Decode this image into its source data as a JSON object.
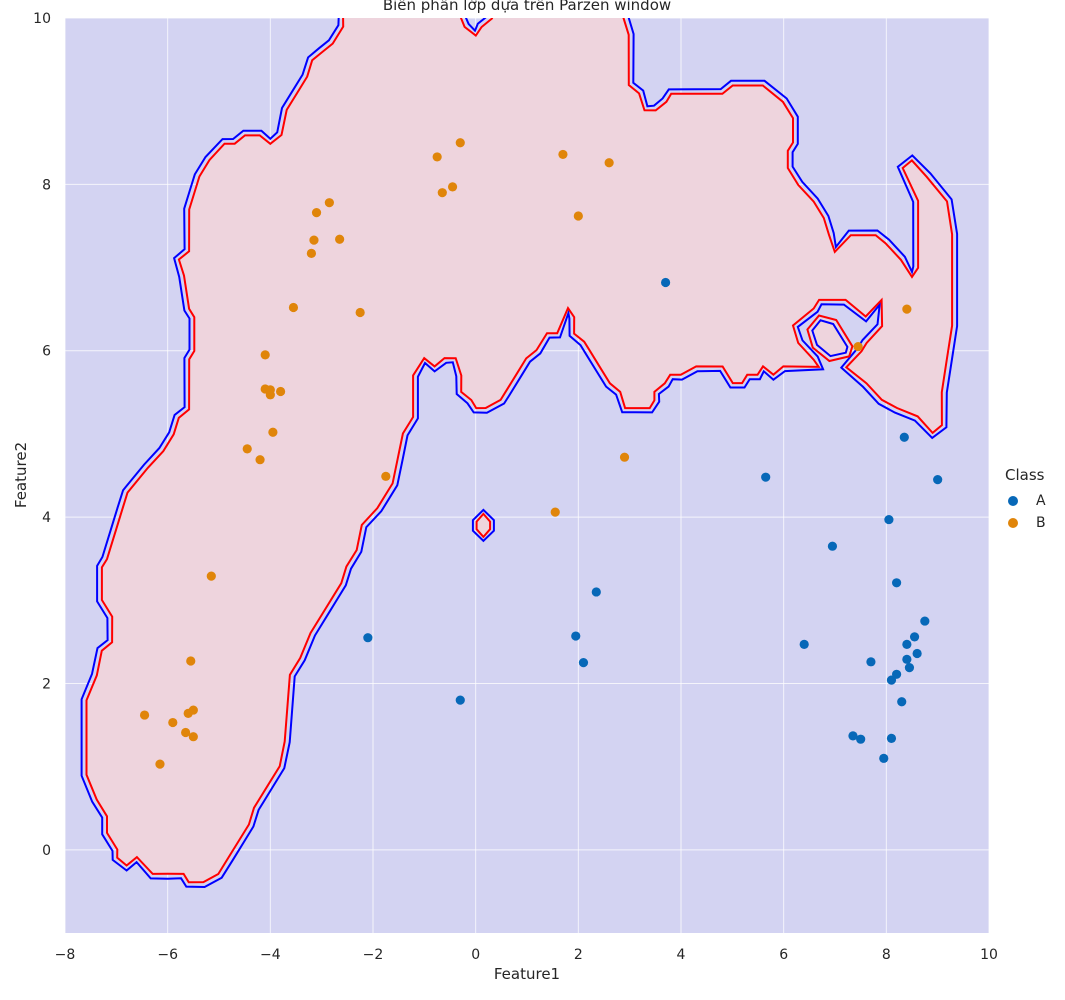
{
  "colors": {
    "background_region": "#d3d3f2",
    "class_b_region": "#eed4dd",
    "boundary_outer": "#0000ff",
    "boundary_inner": "#ff0000",
    "point_a": "#0768b8",
    "point_b": "#e0850a",
    "grid": "#ffffff"
  },
  "chart_data": {
    "type": "scatter",
    "title": "Biên phân lớp dựa trên Parzen window",
    "xlabel": "Feature1",
    "ylabel": "Feature2",
    "xlim": [
      -8,
      10
    ],
    "ylim": [
      -1,
      10
    ],
    "xticks": [
      -8,
      -6,
      -4,
      -2,
      0,
      2,
      4,
      6,
      8,
      10
    ],
    "yticks": [
      0,
      2,
      4,
      6,
      8,
      10
    ],
    "grid": true,
    "legend": {
      "title": "Class",
      "placement": "right",
      "entries": [
        "A",
        "B"
      ]
    },
    "series": [
      {
        "name": "A",
        "points": [
          [
            -2.1,
            2.55
          ],
          [
            -0.3,
            1.8
          ],
          [
            1.95,
            2.57
          ],
          [
            2.1,
            2.25
          ],
          [
            2.35,
            3.1
          ],
          [
            3.7,
            6.82
          ],
          [
            5.65,
            4.48
          ],
          [
            6.4,
            2.47
          ],
          [
            6.95,
            3.65
          ],
          [
            7.35,
            1.37
          ],
          [
            7.5,
            1.33
          ],
          [
            7.7,
            2.26
          ],
          [
            7.95,
            1.1
          ],
          [
            8.05,
            3.97
          ],
          [
            8.1,
            2.04
          ],
          [
            8.1,
            1.34
          ],
          [
            8.2,
            3.21
          ],
          [
            8.2,
            2.11
          ],
          [
            8.3,
            1.78
          ],
          [
            8.35,
            4.96
          ],
          [
            8.4,
            2.47
          ],
          [
            8.4,
            2.29
          ],
          [
            8.45,
            2.19
          ],
          [
            8.55,
            2.56
          ],
          [
            8.6,
            2.36
          ],
          [
            8.75,
            2.75
          ],
          [
            9.0,
            4.45
          ]
        ]
      },
      {
        "name": "B",
        "points": [
          [
            -6.45,
            1.62
          ],
          [
            -6.15,
            1.03
          ],
          [
            -5.9,
            1.53
          ],
          [
            -5.65,
            1.41
          ],
          [
            -5.6,
            1.64
          ],
          [
            -5.5,
            1.36
          ],
          [
            -5.5,
            1.68
          ],
          [
            -5.55,
            2.27
          ],
          [
            -5.15,
            3.29
          ],
          [
            -4.45,
            4.82
          ],
          [
            -4.2,
            4.69
          ],
          [
            -4.1,
            5.95
          ],
          [
            -4.1,
            5.54
          ],
          [
            -4.0,
            5.47
          ],
          [
            -4.0,
            5.53
          ],
          [
            -3.95,
            5.02
          ],
          [
            -3.8,
            5.51
          ],
          [
            -3.55,
            6.52
          ],
          [
            -3.2,
            7.17
          ],
          [
            -3.15,
            7.33
          ],
          [
            -3.1,
            7.66
          ],
          [
            -2.85,
            7.78
          ],
          [
            -2.65,
            7.34
          ],
          [
            -2.25,
            6.46
          ],
          [
            -1.75,
            4.49
          ],
          [
            -0.75,
            8.33
          ],
          [
            -0.65,
            7.9
          ],
          [
            -0.45,
            7.97
          ],
          [
            -0.3,
            8.5
          ],
          [
            1.55,
            4.06
          ],
          [
            1.7,
            8.36
          ],
          [
            2.0,
            7.62
          ],
          [
            2.6,
            8.26
          ],
          [
            2.9,
            4.72
          ],
          [
            7.45,
            6.05
          ],
          [
            8.4,
            6.5
          ]
        ]
      }
    ]
  }
}
